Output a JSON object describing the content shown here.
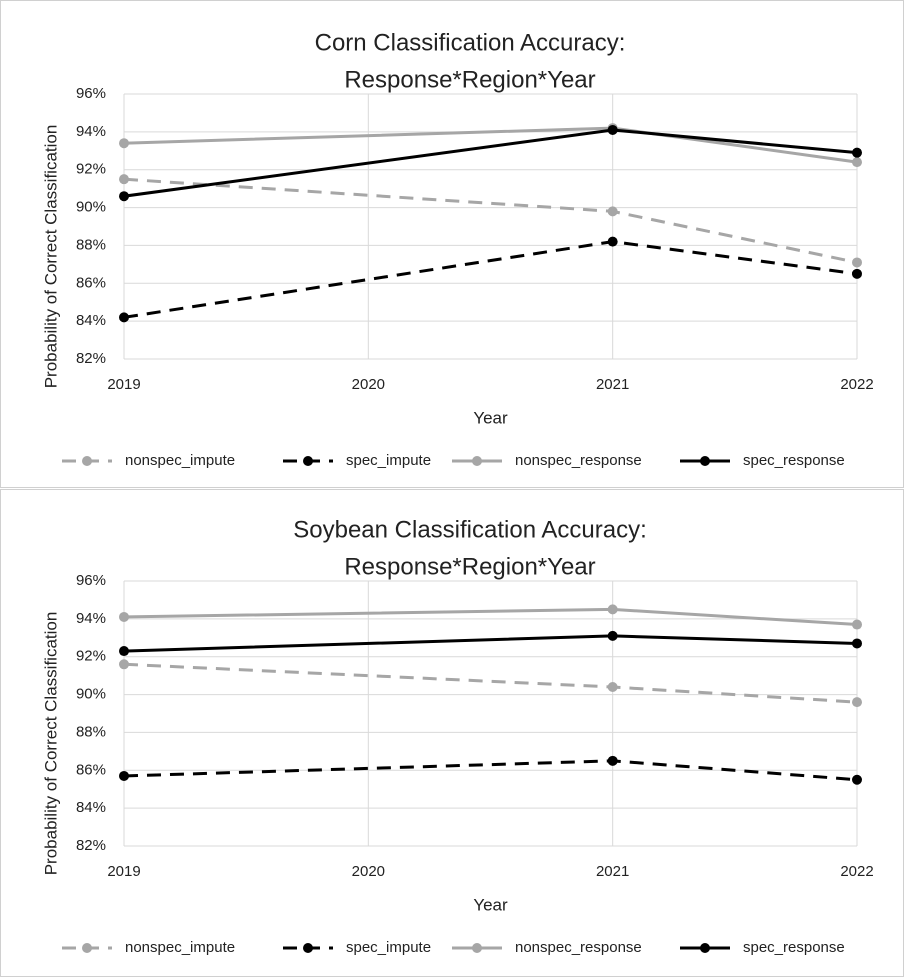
{
  "chart_data": [
    {
      "type": "line",
      "title": [
        "Corn Classification Accuracy:",
        "Response*Region*Year"
      ],
      "x_label": "Year",
      "y_label": "Probability of Correct Classification",
      "x": [
        2019,
        2021,
        2022
      ],
      "xlim": [
        2019,
        2022
      ],
      "xticks": [
        2019,
        2020,
        2021,
        2022
      ],
      "ylim": [
        82,
        96
      ],
      "yticks": [
        {
          "value": 82,
          "label": "82%"
        },
        {
          "value": 84,
          "label": "84%"
        },
        {
          "value": 86,
          "label": "86%"
        },
        {
          "value": 88,
          "label": "88%"
        },
        {
          "value": 90,
          "label": "90%"
        },
        {
          "value": 92,
          "label": "92%"
        },
        {
          "value": 94,
          "label": "94%"
        },
        {
          "value": 96,
          "label": "96%"
        }
      ],
      "grid": true,
      "legend": "bottom",
      "series": [
        {
          "name": "nonspec_impute",
          "color": "#a6a6a6",
          "dash": true,
          "values": [
            91.5,
            89.8,
            87.1
          ]
        },
        {
          "name": "spec_impute",
          "color": "#000000",
          "dash": true,
          "values": [
            84.2,
            88.2,
            86.5
          ]
        },
        {
          "name": "nonspec_response",
          "color": "#a6a6a6",
          "dash": false,
          "values": [
            93.4,
            94.2,
            92.4
          ]
        },
        {
          "name": "spec_response",
          "color": "#000000",
          "dash": false,
          "values": [
            90.6,
            94.1,
            92.9
          ]
        }
      ]
    },
    {
      "type": "line",
      "title": [
        "Soybean Classification Accuracy:",
        "Response*Region*Year"
      ],
      "x_label": "Year",
      "y_label": "Probability of Correct Classification",
      "x": [
        2019,
        2021,
        2022
      ],
      "xlim": [
        2019,
        2022
      ],
      "xticks": [
        2019,
        2020,
        2021,
        2022
      ],
      "ylim": [
        82,
        96
      ],
      "yticks": [
        {
          "value": 82,
          "label": "82%"
        },
        {
          "value": 84,
          "label": "84%"
        },
        {
          "value": 86,
          "label": "86%"
        },
        {
          "value": 88,
          "label": "88%"
        },
        {
          "value": 90,
          "label": "90%"
        },
        {
          "value": 92,
          "label": "92%"
        },
        {
          "value": 94,
          "label": "94%"
        },
        {
          "value": 96,
          "label": "96%"
        }
      ],
      "grid": true,
      "legend": "bottom",
      "series": [
        {
          "name": "nonspec_impute",
          "color": "#a6a6a6",
          "dash": true,
          "values": [
            91.6,
            90.4,
            89.6
          ]
        },
        {
          "name": "spec_impute",
          "color": "#000000",
          "dash": true,
          "values": [
            85.7,
            86.5,
            85.5
          ]
        },
        {
          "name": "nonspec_response",
          "color": "#a6a6a6",
          "dash": false,
          "values": [
            94.1,
            94.5,
            93.7
          ]
        },
        {
          "name": "spec_response",
          "color": "#000000",
          "dash": false,
          "values": [
            92.3,
            93.1,
            92.7
          ]
        }
      ]
    }
  ]
}
